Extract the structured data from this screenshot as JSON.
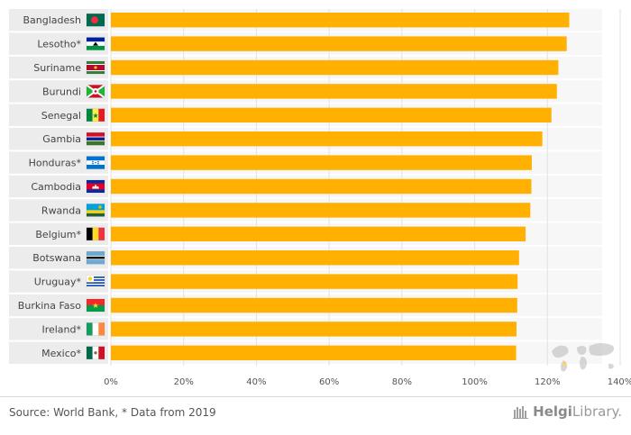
{
  "chart_data": {
    "type": "bar",
    "orientation": "horizontal",
    "categories": [
      "Bangladesh",
      "Lesotho*",
      "Suriname",
      "Burundi",
      "Senegal",
      "Gambia",
      "Honduras*",
      "Cambodia",
      "Rwanda",
      "Belgium*",
      "Botswana",
      "Uruguay*",
      "Burkina Faso",
      "Ireland*",
      "Mexico*"
    ],
    "values": [
      126,
      125.3,
      123,
      122.6,
      121.1,
      118.6,
      115.7,
      115.6,
      115.3,
      114,
      112.2,
      111.8,
      111.7,
      111.5,
      111.4
    ],
    "flags": [
      "bangladesh-flag",
      "lesotho-flag",
      "suriname-flag",
      "burundi-flag",
      "senegal-flag",
      "gambia-flag",
      "honduras-flag",
      "cambodia-flag",
      "rwanda-flag",
      "belgium-flag",
      "botswana-flag",
      "uruguay-flag",
      "burkina-faso-flag",
      "ireland-flag",
      "mexico-flag"
    ],
    "xlim": [
      0,
      140
    ],
    "xticks": [
      "0%",
      "20%",
      "40%",
      "60%",
      "80%",
      "100%",
      "120%",
      "140%"
    ],
    "bar_color": "#ffb000",
    "row_color": "#ececec",
    "grid": true
  },
  "footer": {
    "source": "Source: World Bank, * Data from 2019",
    "brand_name": "Helgi",
    "brand_suffix": "Library."
  }
}
